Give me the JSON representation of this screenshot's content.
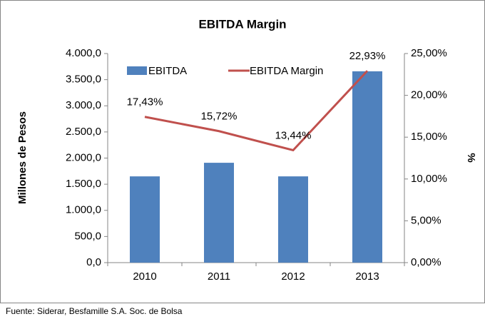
{
  "chart_data": {
    "type": "bar",
    "title": "EBITDA Margin",
    "ylabel": "Millones de Pesos",
    "y2label": "%",
    "categories": [
      "2010",
      "2011",
      "2012",
      "2013"
    ],
    "series": [
      {
        "name": "EBITDA",
        "type": "bar",
        "color": "#4f81bd",
        "values": [
          1650,
          1910,
          1650,
          3660
        ]
      },
      {
        "name": "EBITDA Margin",
        "type": "line",
        "axis": "y2",
        "color": "#c0504d",
        "values": [
          17.43,
          15.72,
          13.44,
          22.93
        ],
        "value_labels": [
          "17,43%",
          "15,72%",
          "13,44%",
          "22,93%"
        ]
      }
    ],
    "ylim": [
      0,
      4000
    ],
    "yticks": [
      {
        "value": 0,
        "label": "0,0"
      },
      {
        "value": 500,
        "label": "500,0"
      },
      {
        "value": 1000,
        "label": "1.000,0"
      },
      {
        "value": 1500,
        "label": "1.500,0"
      },
      {
        "value": 2000,
        "label": "2.000,0"
      },
      {
        "value": 2500,
        "label": "2.500,0"
      },
      {
        "value": 3000,
        "label": "3.000,0"
      },
      {
        "value": 3500,
        "label": "3.500,0"
      },
      {
        "value": 4000,
        "label": "4.000,0"
      }
    ],
    "y2lim": [
      0,
      25
    ],
    "y2ticks": [
      {
        "value": 0,
        "label": "0,00%"
      },
      {
        "value": 5,
        "label": "5,00%"
      },
      {
        "value": 10,
        "label": "10,00%"
      },
      {
        "value": 15,
        "label": "15,00%"
      },
      {
        "value": 20,
        "label": "20,00%"
      },
      {
        "value": 25,
        "label": "25,00%"
      }
    ],
    "grid": false,
    "legend": "top",
    "source": "Fuente: Siderar, Besfamille S.A. Soc. de Bolsa"
  }
}
